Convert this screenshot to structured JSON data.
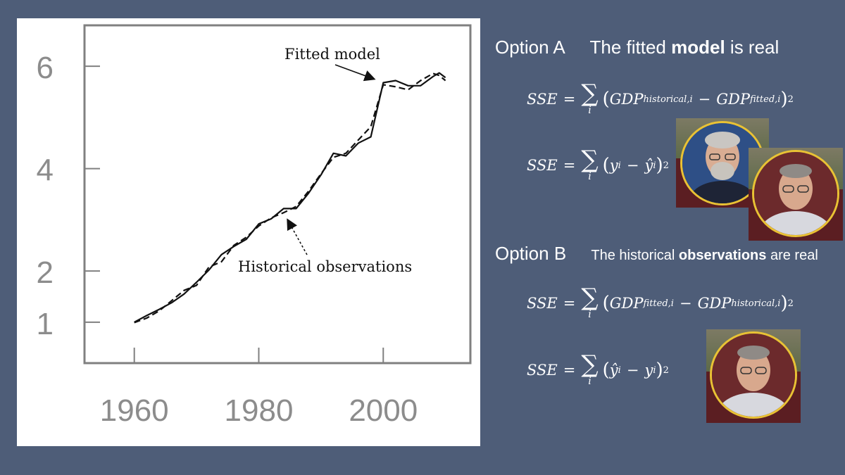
{
  "chart_data": {
    "type": "line",
    "x_ticks": [
      "1960",
      "1980",
      "2000"
    ],
    "y_ticks": [
      "1",
      "2",
      "4",
      "6"
    ],
    "xlim": [
      1952,
      2014
    ],
    "ylim": [
      0.2,
      6.8
    ],
    "series": [
      {
        "name": "Fitted model",
        "style": "solid",
        "x": [
          1960,
          1962,
          1964,
          1966,
          1968,
          1970,
          1972,
          1974,
          1976,
          1978,
          1980,
          1982,
          1984,
          1986,
          1988,
          1990,
          1992,
          1994,
          1996,
          1998,
          2000,
          2002,
          2004,
          2006,
          2008,
          2009,
          2010
        ],
        "y": [
          1.0,
          1.13,
          1.25,
          1.38,
          1.55,
          1.78,
          2.02,
          2.32,
          2.48,
          2.62,
          2.92,
          3.02,
          3.22,
          3.22,
          3.52,
          3.88,
          4.3,
          4.25,
          4.5,
          4.62,
          5.68,
          5.72,
          5.62,
          5.62,
          5.8,
          5.87,
          5.78
        ]
      },
      {
        "name": "Historical observations",
        "style": "dashed",
        "x": [
          1960,
          1962,
          1964,
          1966,
          1968,
          1970,
          1972,
          1974,
          1976,
          1978,
          1980,
          1982,
          1984,
          1986,
          1988,
          1990,
          1992,
          1994,
          1996,
          1998,
          2000,
          2002,
          2004,
          2006,
          2008,
          2009,
          2010
        ],
        "y": [
          0.99,
          1.08,
          1.22,
          1.42,
          1.62,
          1.72,
          2.08,
          2.18,
          2.5,
          2.66,
          2.88,
          3.04,
          3.14,
          3.26,
          3.56,
          3.9,
          4.22,
          4.3,
          4.56,
          4.82,
          5.64,
          5.6,
          5.54,
          5.72,
          5.86,
          5.82,
          5.72
        ]
      }
    ],
    "annotations": [
      {
        "text": "Fitted model",
        "x": 1998,
        "y": 5.7
      },
      {
        "text": "Historical observations",
        "x": 1984,
        "y": 3.1
      }
    ],
    "grid": false
  },
  "option_a": {
    "label": "Option A",
    "claim_pre": "The fitted ",
    "claim_bold": "model",
    "claim_post": " is real",
    "f1": {
      "lhs": "SSE",
      "sub": "i",
      "t1": "GDP",
      "t1_sub": "historical,i",
      "t2": "GDP",
      "t2_sub": "fitted,i",
      "exp": "2"
    },
    "f2": {
      "lhs": "SSE",
      "sub": "i",
      "a": "y",
      "a_sub": "i",
      "b": "ŷ",
      "b_sub": "i",
      "exp": "2"
    }
  },
  "option_b": {
    "label": "Option B",
    "claim_pre": "The historical ",
    "claim_bold": "observations",
    "claim_post": " are real",
    "f1": {
      "lhs": "SSE",
      "sub": "i",
      "t1": "GDP",
      "t1_sub": "fitted,i",
      "t2": "GDP",
      "t2_sub": "historical,i",
      "exp": "2"
    },
    "f2": {
      "lhs": "SSE",
      "sub": "i",
      "a": "ŷ",
      "a_sub": "i",
      "b": "y",
      "b_sub": "i",
      "exp": "2"
    }
  },
  "symbols": {
    "eq": "=",
    "sigma": "∑",
    "minus": "−",
    "lparen": "(",
    "rparen": ")"
  }
}
